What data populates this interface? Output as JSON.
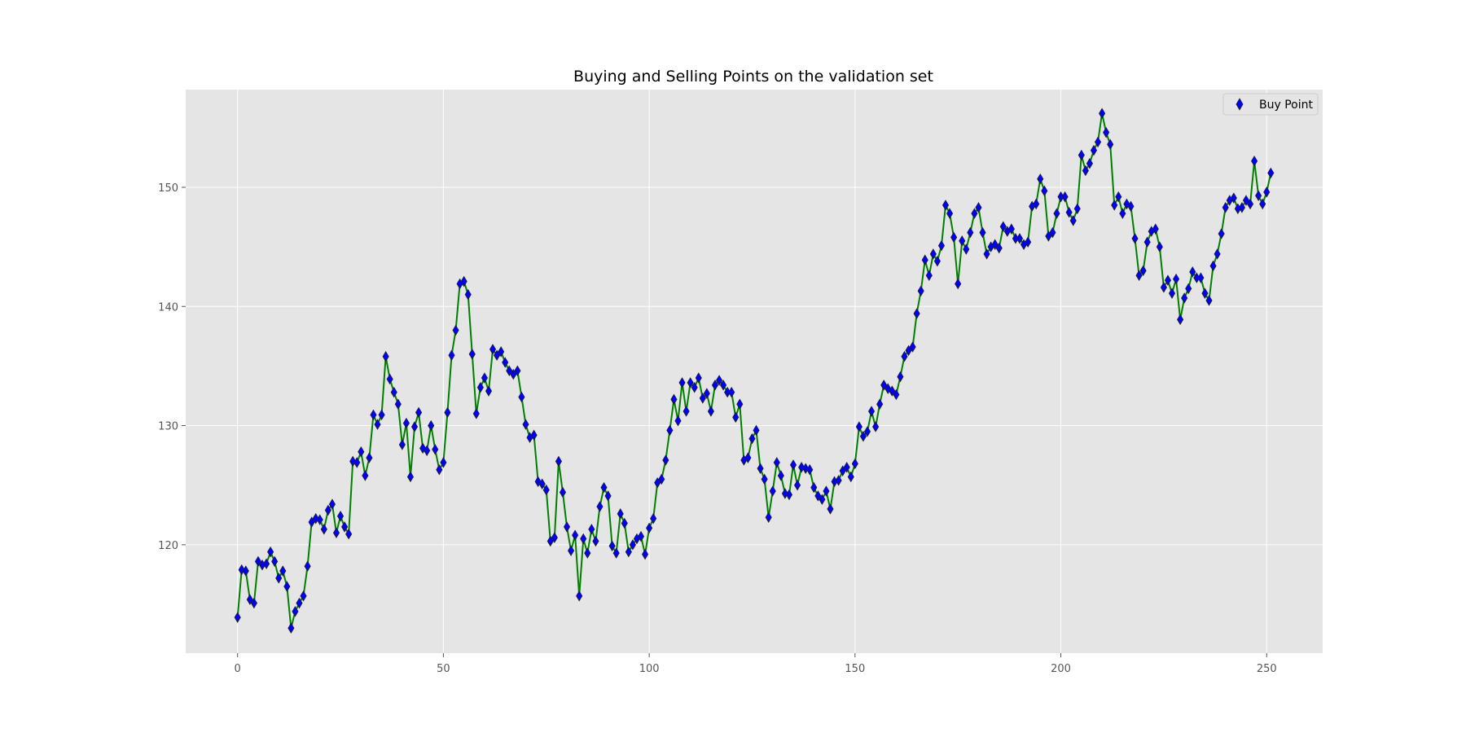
{
  "chart_data": {
    "type": "line",
    "title": "Buying and Selling Points on the validation set",
    "xlabel": "",
    "ylabel": "",
    "xlim": [
      -12.6,
      263.6
    ],
    "ylim": [
      110.9,
      158.2
    ],
    "x_ticks": [
      0,
      50,
      100,
      150,
      200,
      250
    ],
    "y_ticks": [
      120,
      130,
      140,
      150
    ],
    "grid": true,
    "legend": {
      "position": "top-right",
      "entries": [
        "Buy Point"
      ]
    },
    "colors": {
      "line": "#008000",
      "marker": "#0000ff",
      "marker_edge": "#222222",
      "axes_bg": "#e5e5e5",
      "grid": "#ffffff"
    },
    "series": [
      {
        "name": "Buy Point",
        "x": [
          0,
          1,
          2,
          3,
          4,
          5,
          6,
          7,
          8,
          9,
          10,
          11,
          12,
          13,
          14,
          15,
          16,
          17,
          18,
          19,
          20,
          21,
          22,
          23,
          24,
          25,
          26,
          27,
          28,
          29,
          30,
          31,
          32,
          33,
          34,
          35,
          36,
          37,
          38,
          39,
          40,
          41,
          42,
          43,
          44,
          45,
          46,
          47,
          48,
          49,
          50,
          51,
          52,
          53,
          54,
          55,
          56,
          57,
          58,
          59,
          60,
          61,
          62,
          63,
          64,
          65,
          66,
          67,
          68,
          69,
          70,
          71,
          72,
          73,
          74,
          75,
          76,
          77,
          78,
          79,
          80,
          81,
          82,
          83,
          84,
          85,
          86,
          87,
          88,
          89,
          90,
          91,
          92,
          93,
          94,
          95,
          96,
          97,
          98,
          99,
          100,
          101,
          102,
          103,
          104,
          105,
          106,
          107,
          108,
          109,
          110,
          111,
          112,
          113,
          114,
          115,
          116,
          117,
          118,
          119,
          120,
          121,
          122,
          123,
          124,
          125,
          126,
          127,
          128,
          129,
          130,
          131,
          132,
          133,
          134,
          135,
          136,
          137,
          138,
          139,
          140,
          141,
          142,
          143,
          144,
          145,
          146,
          147,
          148,
          149,
          150,
          151,
          152,
          153,
          154,
          155,
          156,
          157,
          158,
          159,
          160,
          161,
          162,
          163,
          164,
          165,
          166,
          167,
          168,
          169,
          170,
          171,
          172,
          173,
          174,
          175,
          176,
          177,
          178,
          179,
          180,
          181,
          182,
          183,
          184,
          185,
          186,
          187,
          188,
          189,
          190,
          191,
          192,
          193,
          194,
          195,
          196,
          197,
          198,
          199,
          200,
          201,
          202,
          203,
          204,
          205,
          206,
          207,
          208,
          209,
          210,
          211,
          212,
          213,
          214,
          215,
          216,
          217,
          218,
          219,
          220,
          221,
          222,
          223,
          224,
          225,
          226,
          227,
          228,
          229,
          230,
          231,
          232,
          233,
          234,
          235,
          236,
          237,
          238,
          239,
          240,
          241,
          242,
          243,
          244,
          245,
          246,
          247,
          248,
          249,
          250,
          251
        ],
        "y": [
          113.9,
          117.9,
          117.8,
          115.4,
          115.1,
          118.6,
          118.3,
          118.4,
          119.4,
          118.6,
          117.2,
          117.8,
          116.5,
          113.0,
          114.4,
          115.1,
          115.7,
          118.2,
          121.9,
          122.2,
          122.1,
          121.3,
          122.9,
          123.4,
          121.0,
          122.4,
          121.5,
          120.9,
          127.0,
          126.9,
          127.8,
          125.8,
          127.3,
          130.9,
          130.1,
          130.9,
          135.8,
          133.9,
          132.8,
          131.8,
          128.4,
          130.2,
          125.7,
          129.9,
          131.1,
          128.1,
          127.9,
          130.0,
          128.0,
          126.3,
          126.9,
          131.1,
          135.9,
          138.0,
          141.9,
          142.1,
          141.0,
          136.0,
          131.0,
          133.2,
          134.0,
          132.9,
          136.4,
          135.9,
          136.2,
          135.3,
          134.6,
          134.3,
          134.6,
          132.4,
          130.1,
          129.0,
          129.2,
          125.3,
          125.1,
          124.6,
          120.3,
          120.6,
          127.0,
          124.4,
          121.5,
          119.5,
          120.8,
          115.7,
          120.5,
          119.3,
          121.3,
          120.3,
          123.2,
          124.8,
          124.1,
          119.9,
          119.3,
          122.6,
          121.8,
          119.4,
          120.0,
          120.5,
          120.7,
          119.2,
          121.4,
          122.2,
          125.2,
          125.5,
          127.1,
          129.6,
          132.2,
          130.4,
          133.6,
          131.2,
          133.6,
          133.2,
          134.0,
          132.3,
          132.7,
          131.2,
          133.4,
          133.8,
          133.4,
          132.8,
          132.8,
          130.7,
          131.8,
          127.1,
          127.3,
          128.9,
          129.6,
          126.4,
          125.5,
          122.3,
          124.5,
          126.9,
          125.8,
          124.3,
          124.2,
          126.7,
          125.0,
          126.5,
          126.4,
          126.3,
          124.8,
          124.1,
          123.8,
          124.5,
          123.0,
          125.3,
          125.4,
          126.2,
          126.5,
          125.7,
          126.8,
          129.9,
          129.1,
          129.5,
          131.2,
          129.9,
          131.8,
          133.4,
          133.1,
          132.9,
          132.6,
          134.1,
          135.8,
          136.3,
          136.6,
          139.4,
          141.3,
          143.9,
          142.6,
          144.4,
          143.8,
          145.1,
          148.5,
          147.8,
          145.8,
          141.9,
          145.5,
          144.8,
          146.2,
          147.8,
          148.3,
          146.2,
          144.4,
          145.0,
          145.2,
          144.9,
          146.7,
          146.3,
          146.5,
          145.7,
          145.7,
          145.2,
          145.4,
          148.4,
          148.6,
          150.7,
          149.7,
          145.9,
          146.2,
          147.8,
          149.2,
          149.2,
          147.9,
          147.2,
          148.2,
          152.7,
          151.4,
          152.0,
          153.1,
          153.8,
          156.2,
          154.6,
          153.6,
          148.5,
          149.2,
          147.8,
          148.6,
          148.4,
          145.7,
          142.6,
          143.0,
          145.4,
          146.3,
          146.5,
          145.0,
          141.6,
          142.2,
          141.1,
          142.3,
          138.9,
          140.7,
          141.5,
          142.9,
          142.4,
          142.4,
          141.1,
          140.5,
          143.4,
          144.4,
          146.1,
          148.3,
          148.9,
          149.1,
          148.2,
          148.3,
          148.9,
          148.6,
          152.2,
          149.3,
          148.6,
          149.6,
          151.2
        ]
      }
    ]
  }
}
